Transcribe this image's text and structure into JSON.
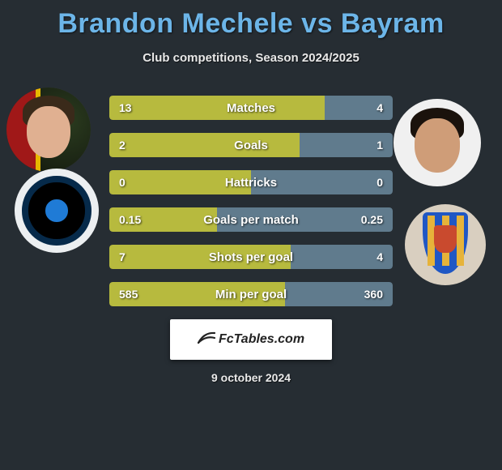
{
  "title": "Brandon Mechele vs Bayram",
  "subtitle": "Club competitions, Season 2024/2025",
  "date": "9 october 2024",
  "brand": "FcTables.com",
  "colors": {
    "title": "#6cb5e8",
    "bar_left": "#b7ba3e",
    "bar_right": "#607b8d",
    "background": "#262d33"
  },
  "stats": [
    {
      "label": "Matches",
      "left_val": "13",
      "right_val": "4",
      "left_pct": 76,
      "right_pct": 24
    },
    {
      "label": "Goals",
      "left_val": "2",
      "right_val": "1",
      "left_pct": 67,
      "right_pct": 33
    },
    {
      "label": "Hattricks",
      "left_val": "0",
      "right_val": "0",
      "left_pct": 50,
      "right_pct": 50
    },
    {
      "label": "Goals per match",
      "left_val": "0.15",
      "right_val": "0.25",
      "left_pct": 38,
      "right_pct": 62
    },
    {
      "label": "Shots per goal",
      "left_val": "7",
      "right_val": "4",
      "left_pct": 64,
      "right_pct": 36
    },
    {
      "label": "Min per goal",
      "left_val": "585",
      "right_val": "360",
      "left_pct": 62,
      "right_pct": 38
    }
  ]
}
